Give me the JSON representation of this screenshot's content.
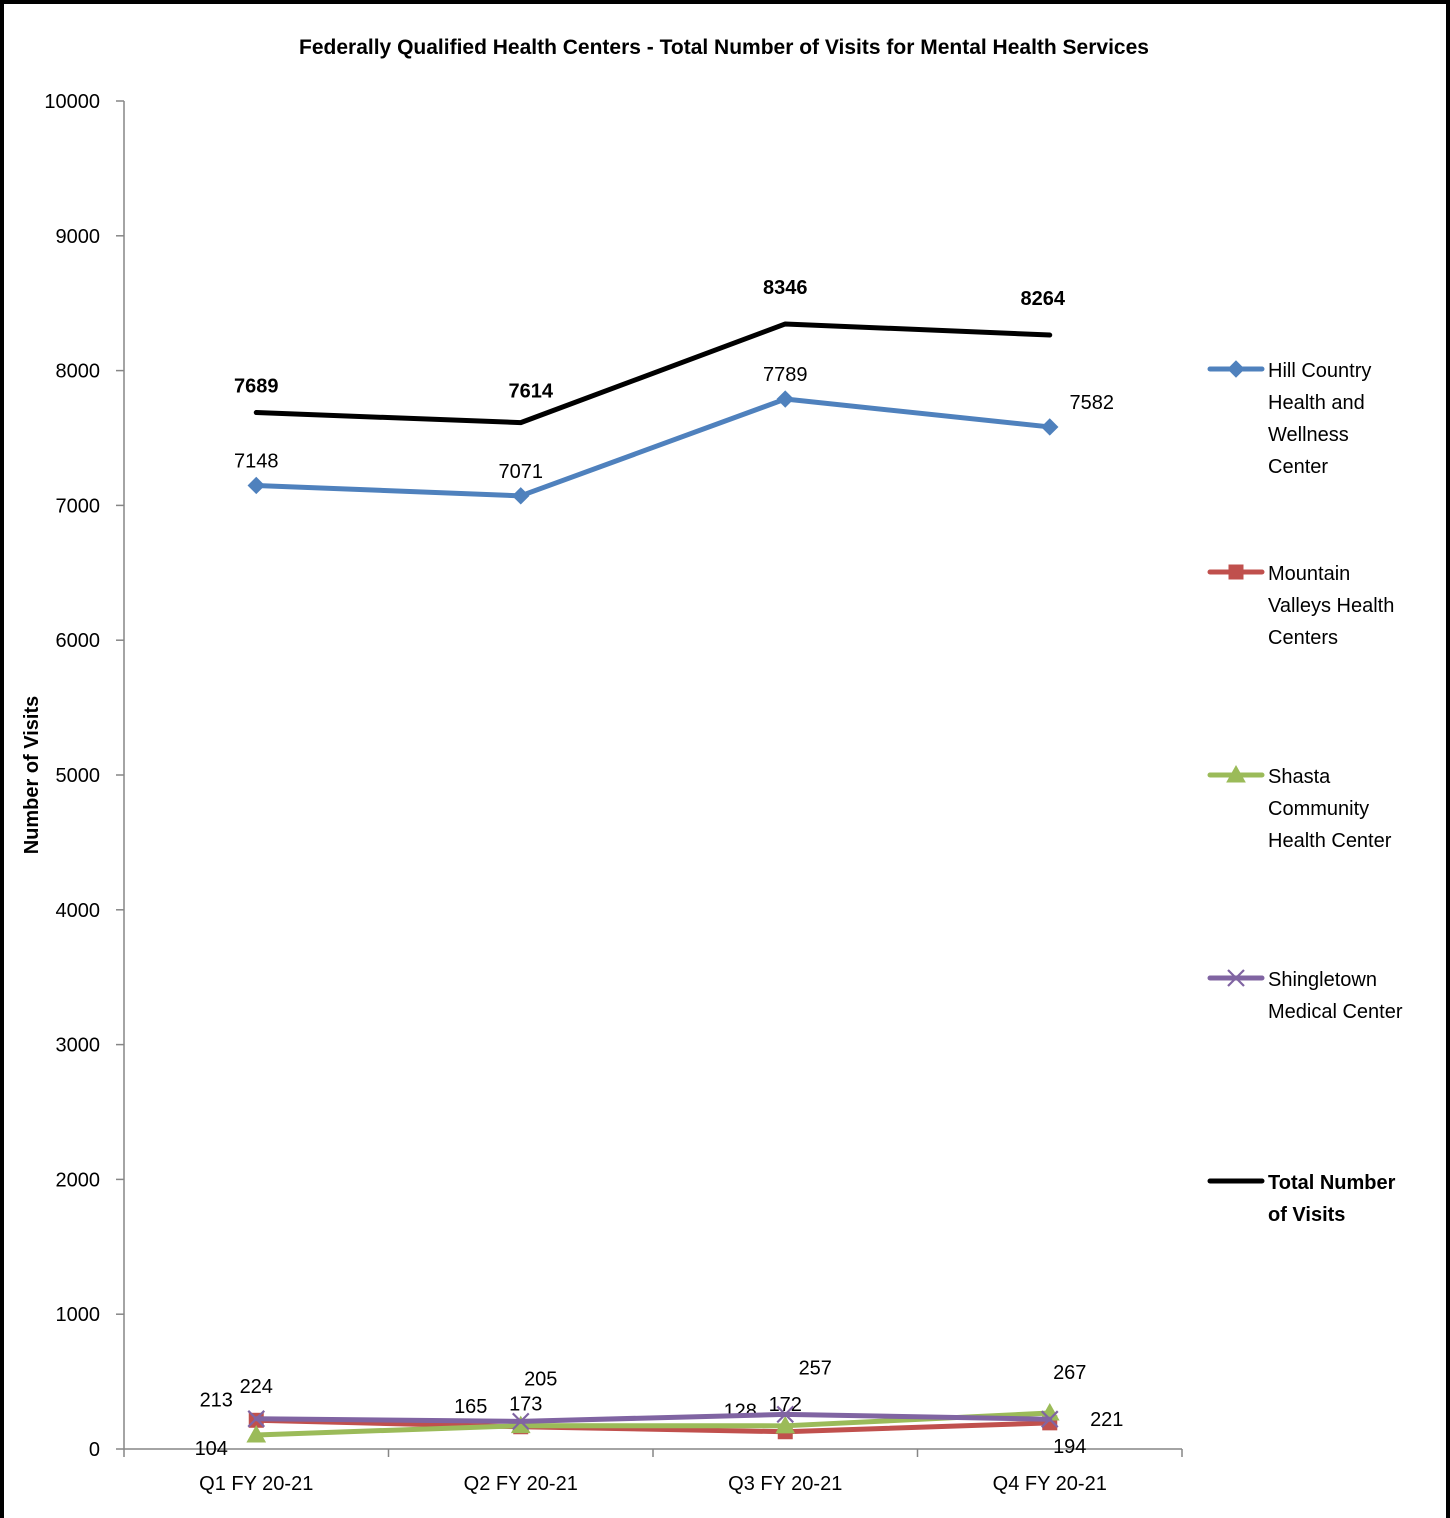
{
  "chart_data": {
    "type": "line",
    "title": "Federally Qualified Health Centers - Total Number of Visits for Mental Health Services",
    "xlabel": "",
    "ylabel": "Number of Visits",
    "categories": [
      "Q1 FY 20-21",
      "Q2 FY 20-21",
      "Q3 FY 20-21",
      "Q4 FY 20-21"
    ],
    "ylim": [
      0,
      10000
    ],
    "yticks": [
      "0",
      "1000",
      "2000",
      "3000",
      "4000",
      "5000",
      "6000",
      "7000",
      "8000",
      "9000",
      "10000"
    ],
    "grid": false,
    "legend_position": "right",
    "series": [
      {
        "name": "Hill Country Health and Wellness Center",
        "legend_lines": [
          "Hill Country",
          "Health and",
          "Wellness",
          "Center"
        ],
        "values": [
          7148,
          7071,
          7789,
          7582
        ],
        "color": "#4F81BD",
        "marker": "diamond",
        "bold": false
      },
      {
        "name": "Mountain Valleys Health Centers",
        "legend_lines": [
          "Mountain",
          "Valleys Health",
          "Centers"
        ],
        "values": [
          213,
          165,
          128,
          194
        ],
        "color": "#C0504D",
        "marker": "square",
        "bold": false
      },
      {
        "name": "Shasta Community Health Center",
        "legend_lines": [
          "Shasta",
          "Community",
          "Health Center"
        ],
        "values": [
          104,
          173,
          172,
          267
        ],
        "color": "#9BBB59",
        "marker": "triangle",
        "bold": false
      },
      {
        "name": "Shingletown Medical Center",
        "legend_lines": [
          "Shingletown",
          "Medical Center"
        ],
        "values": [
          224,
          205,
          257,
          221
        ],
        "color": "#8064A2",
        "marker": "x",
        "bold": false
      },
      {
        "name": "Total Number of Visits",
        "legend_lines": [
          "Total Number",
          "of Visits"
        ],
        "values": [
          7689,
          7614,
          8346,
          8264
        ],
        "color": "#000000",
        "marker": "none",
        "bold": true
      }
    ]
  }
}
